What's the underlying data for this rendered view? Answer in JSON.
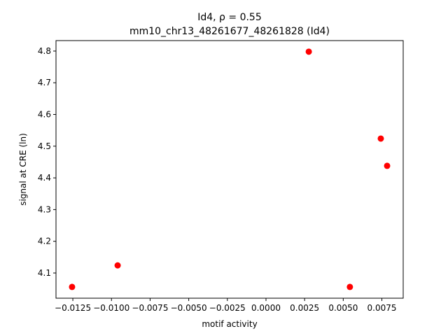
{
  "chart_data": {
    "type": "scatter",
    "title": "Id4, ρ = 0.55",
    "subtitle": "mm10_chr13_48261677_48261828 (Id4)",
    "x_label": "motif activity",
    "y_label": "signal at CRE (ln)",
    "color": "#ff0000",
    "x": [
      -0.01255,
      -0.0096,
      0.00277,
      0.00543,
      0.00743,
      0.00784
    ],
    "values": [
      4.056,
      4.124,
      4.798,
      4.056,
      4.524,
      4.438
    ],
    "xlim": [
      -0.01359,
      0.00888
    ],
    "ylim": [
      4.0205,
      4.833
    ],
    "xticks": [
      {
        "value": -0.0125,
        "label": "−0.0125"
      },
      {
        "value": -0.01,
        "label": "−0.0100"
      },
      {
        "value": -0.0075,
        "label": "−0.0075"
      },
      {
        "value": -0.005,
        "label": "−0.0050"
      },
      {
        "value": -0.0025,
        "label": "−0.0025"
      },
      {
        "value": 0,
        "label": "0.0000"
      },
      {
        "value": 0.0025,
        "label": "0.0025"
      },
      {
        "value": 0.005,
        "label": "0.0050"
      },
      {
        "value": 0.0075,
        "label": "0.0075"
      }
    ],
    "yticks": [
      4.1,
      4.2,
      4.3,
      4.4,
      4.5,
      4.6,
      4.7,
      4.8
    ]
  }
}
